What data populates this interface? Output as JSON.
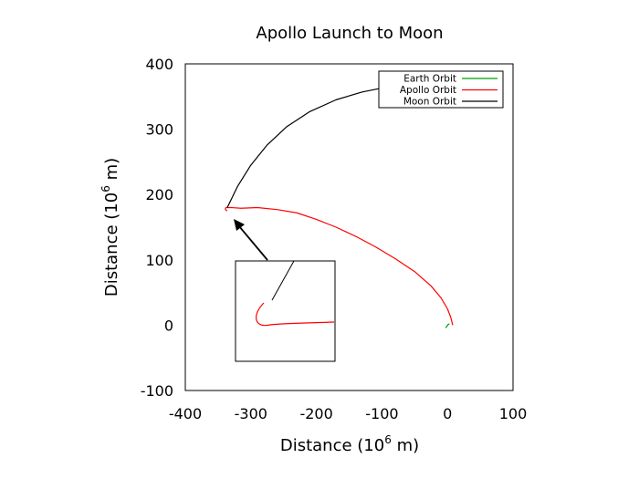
{
  "chart_data": {
    "type": "line",
    "title": "Apollo Launch to Moon",
    "xlabel": "Distance (10",
    "xlabel_sup": "6",
    "xlabel_end": " m)",
    "ylabel": "Distance (10",
    "ylabel_sup": "6",
    "ylabel_end": " m)",
    "xlim": [
      -400,
      100
    ],
    "ylim": [
      -100,
      400
    ],
    "xticks": [
      -400,
      -300,
      -200,
      -100,
      0,
      100
    ],
    "yticks": [
      -100,
      0,
      100,
      200,
      300,
      400
    ],
    "grid": false,
    "legend_position": "top-right",
    "series": [
      {
        "name": "Earth Orbit",
        "color": "#00a000",
        "x": [
          -3,
          -1,
          0,
          1,
          3
        ],
        "y": [
          -4,
          -2,
          0,
          1,
          2
        ]
      },
      {
        "name": "Apollo Orbit",
        "color": "#ff0000",
        "x": [
          8,
          5,
          0,
          -10,
          -25,
          -50,
          -80,
          -110,
          -140,
          -170,
          -200,
          -230,
          -260,
          -290,
          -315,
          -330,
          -338,
          -339,
          -338,
          -336
        ],
        "y": [
          0,
          12,
          25,
          42,
          60,
          82,
          102,
          120,
          136,
          150,
          162,
          172,
          177,
          180,
          179,
          180,
          180,
          178,
          176,
          175
        ]
      },
      {
        "name": "Moon Orbit",
        "color": "#000000",
        "x": [
          -336,
          -320,
          -300,
          -275,
          -245,
          -210,
          -170,
          -130,
          -90,
          -55,
          -35
        ],
        "y": [
          180,
          213,
          245,
          276,
          304,
          327,
          345,
          357,
          365,
          369,
          370
        ]
      }
    ],
    "inset": {
      "description": "zoom",
      "arrow": true
    }
  }
}
